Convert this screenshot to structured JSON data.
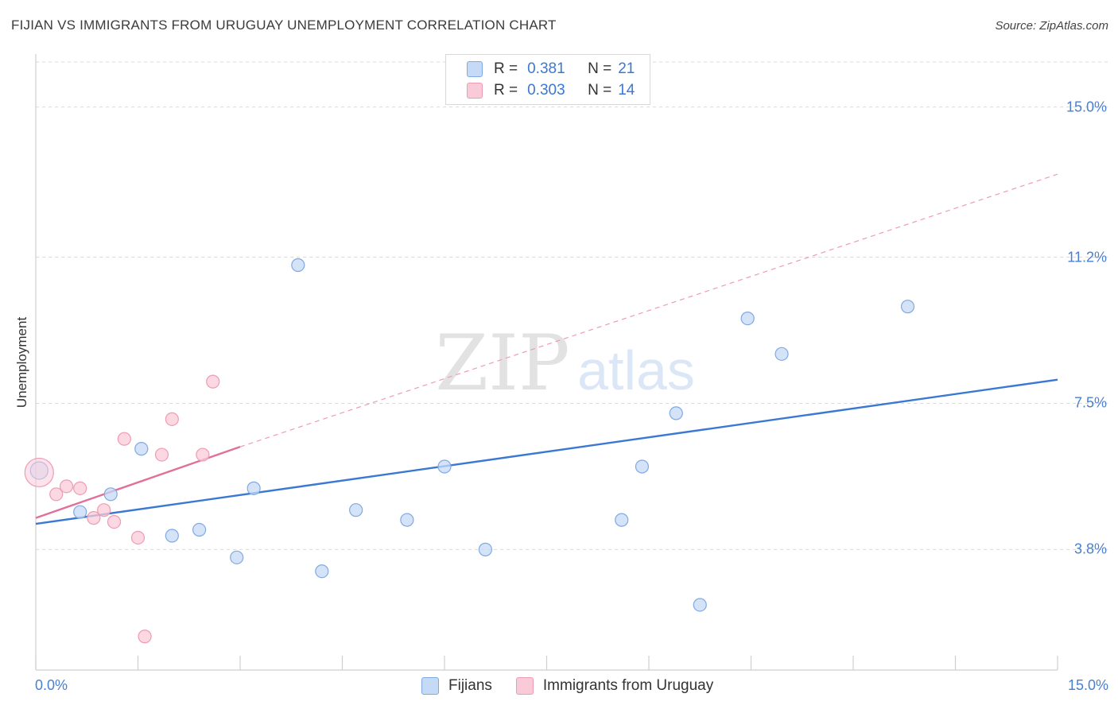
{
  "title": "FIJIAN VS IMMIGRANTS FROM URUGUAY UNEMPLOYMENT CORRELATION CHART",
  "source": "Source: ZipAtlas.com",
  "watermark": {
    "zip": "ZIP",
    "atlas": "atlas"
  },
  "colors": {
    "blue": "#3a78d4",
    "blue_fill": "#c5daf6",
    "blue_stroke": "#7fa9e3",
    "pink": "#e0709a",
    "pink_fill": "#f9cbd8",
    "pink_stroke": "#ee9bb5",
    "grid": "#d9d9d9",
    "tick_text": "#4a7fd0"
  },
  "legend": {
    "rows": [
      {
        "r_label": "R =",
        "r_value": "0.381",
        "n_label": "N =",
        "n_value": "21"
      },
      {
        "r_label": "R =",
        "r_value": "0.303",
        "n_label": "N =",
        "n_value": "14"
      }
    ]
  },
  "chart_data": {
    "type": "scatter",
    "title": "FIJIAN VS IMMIGRANTS FROM URUGUAY UNEMPLOYMENT CORRELATION CHART",
    "xlabel": "",
    "ylabel": "Unemployment",
    "xlim": [
      0,
      15
    ],
    "ylim": [
      0.75,
      16.2
    ],
    "x_tick_labels": [
      "0.0%",
      "15.0%"
    ],
    "y_ticks": [
      3.8,
      7.5,
      11.2,
      15.0
    ],
    "y_tick_labels": [
      "3.8%",
      "7.5%",
      "11.2%",
      "15.0%"
    ],
    "grid": true,
    "series": [
      {
        "name": "Fijians",
        "color": "blue",
        "points": [
          [
            0.05,
            5.8
          ],
          [
            0.65,
            4.75
          ],
          [
            1.1,
            5.2
          ],
          [
            1.55,
            6.35
          ],
          [
            2.0,
            4.15
          ],
          [
            2.4,
            4.3
          ],
          [
            2.95,
            3.6
          ],
          [
            3.2,
            5.35
          ],
          [
            3.85,
            11.0
          ],
          [
            4.2,
            3.25
          ],
          [
            4.7,
            4.8
          ],
          [
            5.45,
            4.55
          ],
          [
            6.0,
            5.9
          ],
          [
            6.6,
            3.8
          ],
          [
            8.6,
            4.55
          ],
          [
            8.9,
            5.9
          ],
          [
            9.4,
            7.25
          ],
          [
            9.75,
            2.4
          ],
          [
            10.45,
            9.65
          ],
          [
            10.95,
            8.75
          ],
          [
            12.8,
            9.95
          ]
        ],
        "trend": {
          "x0": 0,
          "y0": 4.45,
          "x1": 15,
          "y1": 8.1,
          "style": "solid"
        }
      },
      {
        "name": "Immigrants from Uruguay",
        "color": "pink",
        "points": [
          [
            0.05,
            5.75
          ],
          [
            0.3,
            5.2
          ],
          [
            0.45,
            5.4
          ],
          [
            0.65,
            5.35
          ],
          [
            0.85,
            4.6
          ],
          [
            1.0,
            4.8
          ],
          [
            1.15,
            4.5
          ],
          [
            1.3,
            6.6
          ],
          [
            1.5,
            4.1
          ],
          [
            1.6,
            1.6
          ],
          [
            1.85,
            6.2
          ],
          [
            2.0,
            7.1
          ],
          [
            2.45,
            6.2
          ],
          [
            2.6,
            8.05
          ]
        ],
        "trend": {
          "x0": 0,
          "y0": 4.6,
          "x1": 3.0,
          "y1": 6.4,
          "style": "solid"
        },
        "trend_extension": {
          "x0": 3.0,
          "y0": 6.4,
          "x1": 15,
          "y1": 13.3,
          "style": "dashed"
        }
      }
    ]
  },
  "bottom_legend": {
    "items": [
      {
        "label": "Fijians"
      },
      {
        "label": "Immigrants from Uruguay"
      }
    ]
  }
}
